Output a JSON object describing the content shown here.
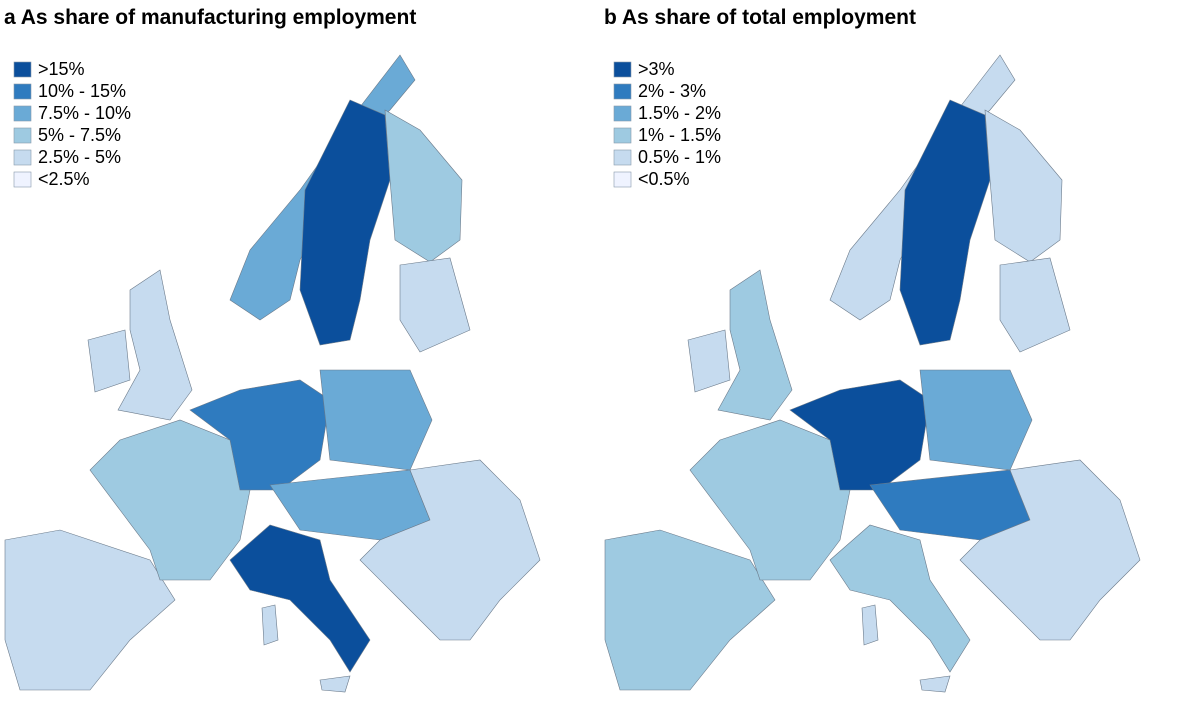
{
  "panels": [
    {
      "title": "a As share of manufacturing employment",
      "legend": [
        {
          "label": ">15%",
          "color": "#0b4f9c"
        },
        {
          "label": "10% - 15%",
          "color": "#2f7bbf"
        },
        {
          "label": "7.5% - 10%",
          "color": "#6aaad6"
        },
        {
          "label": "5% - 7.5%",
          "color": "#9ecae1"
        },
        {
          "label": "2.5% - 5%",
          "color": "#c6dbef"
        },
        {
          "label": "<2.5%",
          "color": "#eff3ff"
        }
      ]
    },
    {
      "title": "b As share of total employment",
      "legend": [
        {
          "label": ">3%",
          "color": "#0b4f9c"
        },
        {
          "label": "2% - 3%",
          "color": "#2f7bbf"
        },
        {
          "label": "1.5% - 2%",
          "color": "#6aaad6"
        },
        {
          "label": "1% - 1.5%",
          "color": "#9ecae1"
        },
        {
          "label": "0.5% - 1%",
          "color": "#c6dbef"
        },
        {
          "label": "<0.5%",
          "color": "#eff3ff"
        }
      ]
    }
  ]
}
